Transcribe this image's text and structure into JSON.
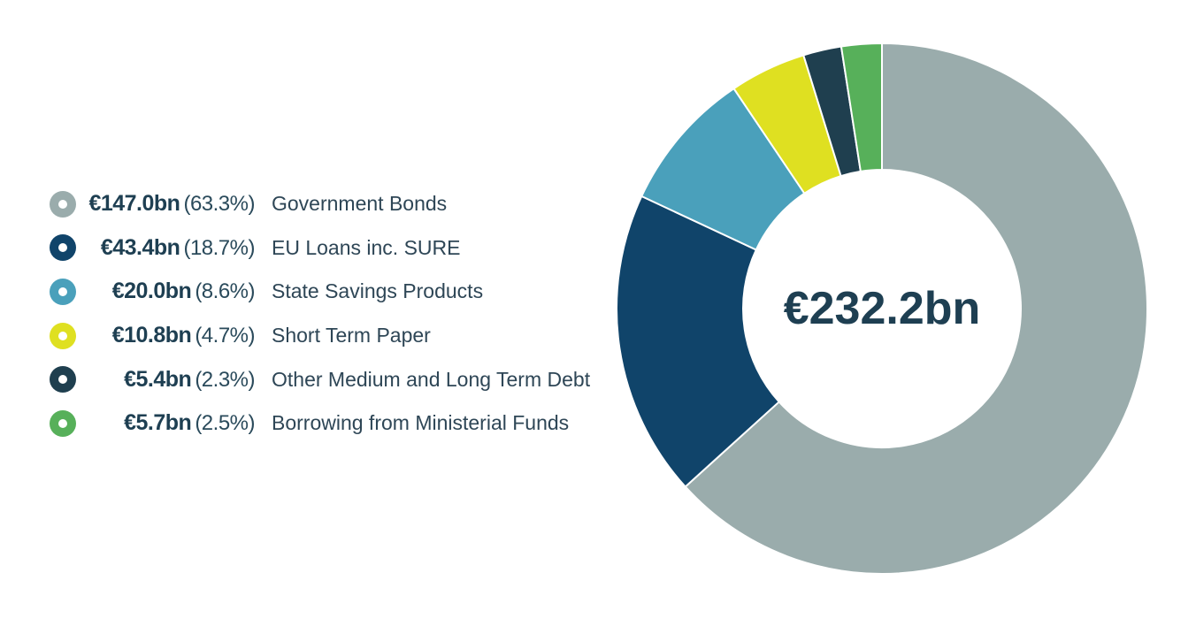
{
  "chart_data": {
    "type": "pie",
    "variant": "donut",
    "center_label": "€232.2bn",
    "series": [
      {
        "name": "Government Bonds",
        "amount": "€147.0bn",
        "percent": "(63.3%)",
        "value": 147.0,
        "share": 63.3,
        "color": "#9aacac"
      },
      {
        "name": "EU Loans inc. SURE",
        "amount": "€43.4bn",
        "percent": "(18.7%)",
        "value": 43.4,
        "share": 18.7,
        "color": "#10446a"
      },
      {
        "name": "State Savings Products",
        "amount": "€20.0bn",
        "percent": "(8.6%)",
        "value": 20.0,
        "share": 8.6,
        "color": "#4aa0bb"
      },
      {
        "name": "Short Term Paper",
        "amount": "€10.8bn",
        "percent": "(4.7%)",
        "value": 10.8,
        "share": 4.7,
        "color": "#dfe021"
      },
      {
        "name": "Other Medium and Long Term Debt",
        "amount": "€5.4bn",
        "percent": "(2.3%)",
        "value": 5.4,
        "share": 2.3,
        "color": "#1f3f4f"
      },
      {
        "name": "Borrowing from Ministerial Funds",
        "amount": "€5.7bn",
        "percent": "(2.5%)",
        "value": 5.7,
        "share": 2.5,
        "color": "#57b05a"
      }
    ],
    "legend_position": "left",
    "grid": false
  }
}
